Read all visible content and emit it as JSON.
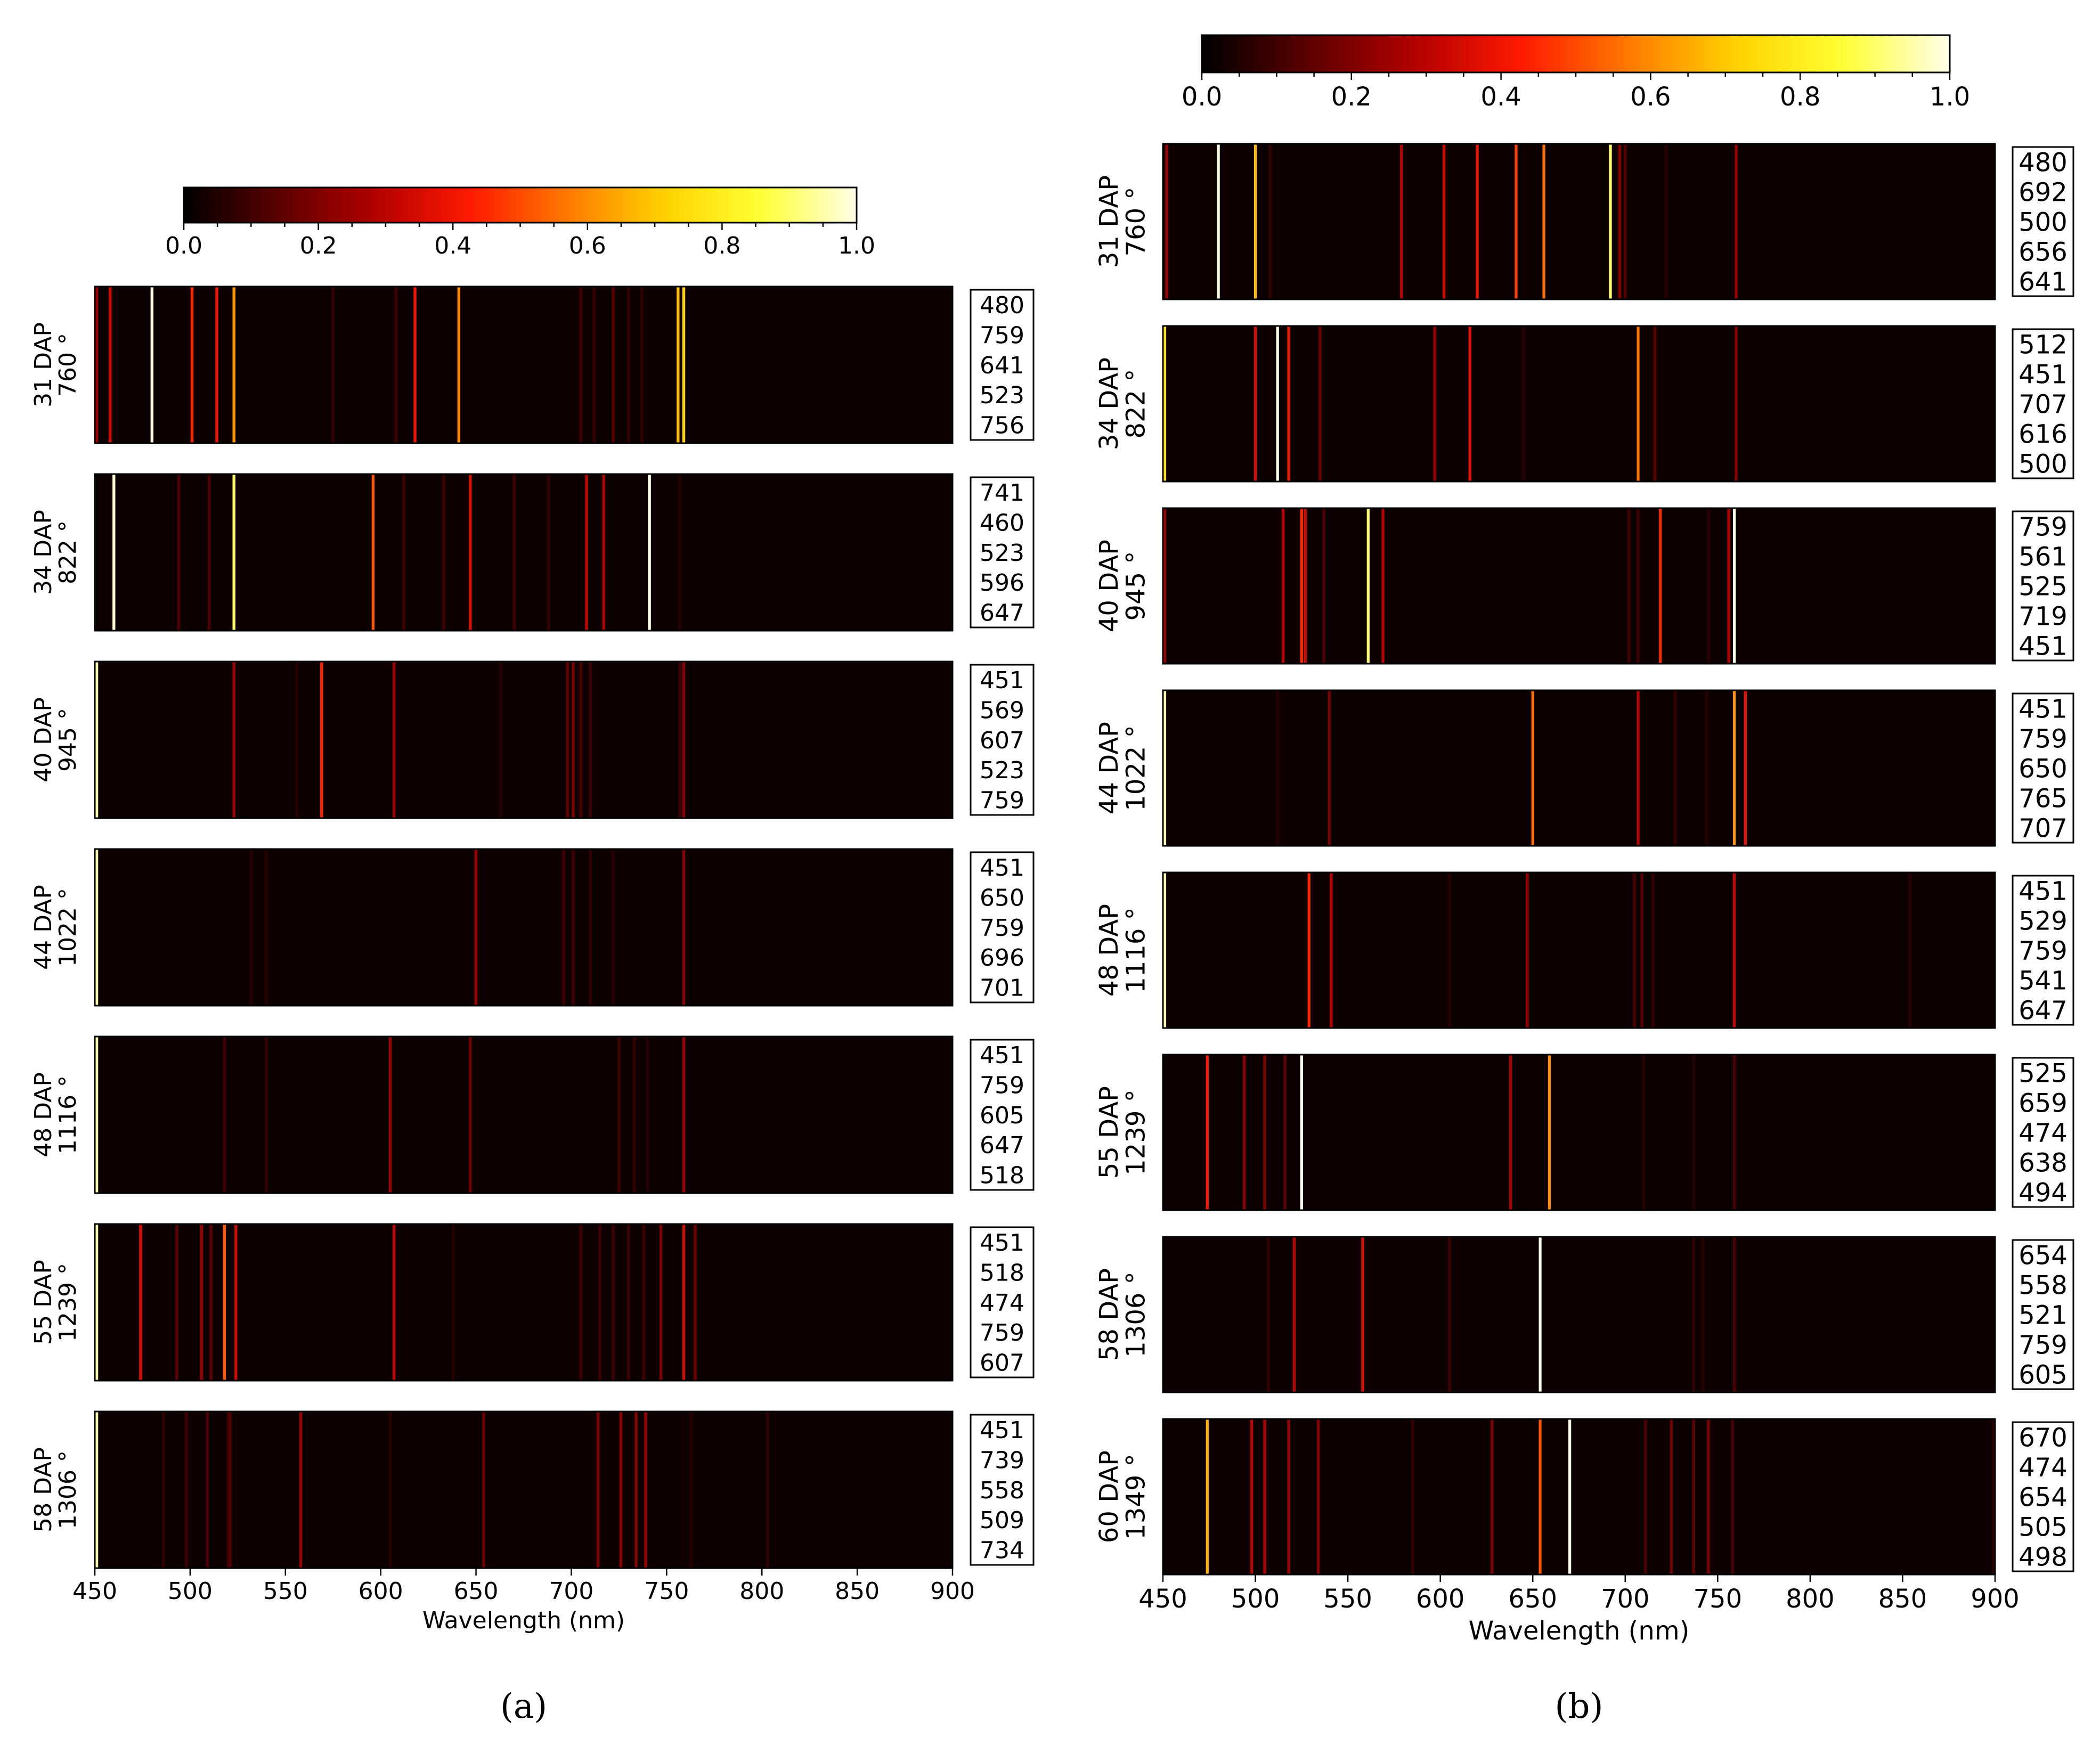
{
  "colors": {
    "colormap": [
      "#000000",
      "#5c0000",
      "#b30000",
      "#ff1a00",
      "#ff7a00",
      "#ffd200",
      "#ffff33",
      "#ffffe8"
    ],
    "frame": "#000000"
  },
  "chart_data": [
    {
      "id": "a",
      "type": "heatmap",
      "caption": "(a)",
      "xlabel": "Wavelength (nm)",
      "xlim": [
        450,
        900
      ],
      "xticks": [
        "450",
        "500",
        "550",
        "600",
        "650",
        "700",
        "750",
        "800",
        "850",
        "900"
      ],
      "colorbar": {
        "range": [
          0,
          1
        ],
        "ticks": [
          "0.0",
          "0.2",
          "0.4",
          "0.6",
          "0.8",
          "1.0"
        ]
      },
      "rows": [
        {
          "label1": "31 DAP",
          "label2": "760 °",
          "top": [
            "480",
            "759",
            "641",
            "523",
            "756"
          ],
          "bands": [
            [
              451,
              0.25
            ],
            [
              458,
              0.35
            ],
            [
              480,
              1.0
            ],
            [
              501,
              0.45
            ],
            [
              514,
              0.4
            ],
            [
              523,
              0.62
            ],
            [
              641,
              0.6
            ],
            [
              737,
              0.08
            ],
            [
              756,
              0.68
            ],
            [
              759,
              0.72
            ],
            [
              618,
              0.4
            ],
            [
              608,
              0.1
            ],
            [
              575,
              0.08
            ],
            [
              705,
              0.1
            ],
            [
              722,
              0.14
            ],
            [
              712,
              0.08
            ],
            [
              730,
              0.08
            ]
          ]
        },
        {
          "label1": "34 DAP",
          "label2": "822 °",
          "top": [
            "741",
            "460",
            "523",
            "596",
            "647"
          ],
          "bands": [
            [
              460,
              0.98
            ],
            [
              523,
              0.9
            ],
            [
              596,
              0.52
            ],
            [
              647,
              0.36
            ],
            [
              741,
              1.0
            ],
            [
              708,
              0.32
            ],
            [
              717,
              0.28
            ],
            [
              494,
              0.12
            ],
            [
              510,
              0.12
            ],
            [
              612,
              0.1
            ],
            [
              633,
              0.1
            ],
            [
              670,
              0.1
            ],
            [
              688,
              0.08
            ],
            [
              757,
              0.06
            ]
          ]
        },
        {
          "label1": "40 DAP",
          "label2": "945 °",
          "top": [
            "451",
            "569",
            "607",
            "523",
            "759"
          ],
          "bands": [
            [
              451,
              0.95
            ],
            [
              523,
              0.25
            ],
            [
              569,
              0.45
            ],
            [
              607,
              0.25
            ],
            [
              759,
              0.22
            ],
            [
              698,
              0.15
            ],
            [
              701,
              0.2
            ],
            [
              705,
              0.12
            ],
            [
              710,
              0.1
            ],
            [
              556,
              0.06
            ],
            [
              663,
              0.06
            ],
            [
              757,
              0.1
            ]
          ]
        },
        {
          "label1": "44 DAP",
          "label2": "1022 °",
          "top": [
            "451",
            "650",
            "759",
            "696",
            "701"
          ],
          "bands": [
            [
              451,
              0.95
            ],
            [
              650,
              0.25
            ],
            [
              759,
              0.22
            ],
            [
              696,
              0.1
            ],
            [
              701,
              0.1
            ],
            [
              710,
              0.08
            ],
            [
              532,
              0.06
            ],
            [
              540,
              0.06
            ],
            [
              722,
              0.06
            ]
          ]
        },
        {
          "label1": "48 DAP",
          "label2": "1116 °",
          "top": [
            "451",
            "759",
            "605",
            "647",
            "518"
          ],
          "bands": [
            [
              451,
              0.95
            ],
            [
              759,
              0.25
            ],
            [
              605,
              0.25
            ],
            [
              647,
              0.18
            ],
            [
              518,
              0.1
            ],
            [
              540,
              0.08
            ],
            [
              725,
              0.1
            ],
            [
              733,
              0.08
            ],
            [
              740,
              0.06
            ]
          ]
        },
        {
          "label1": "55 DAP",
          "label2": "1239 °",
          "top": [
            "451",
            "518",
            "474",
            "759",
            "607"
          ],
          "bands": [
            [
              451,
              0.95
            ],
            [
              474,
              0.36
            ],
            [
              518,
              0.52
            ],
            [
              524,
              0.34
            ],
            [
              759,
              0.35
            ],
            [
              607,
              0.3
            ],
            [
              506,
              0.25
            ],
            [
              493,
              0.15
            ],
            [
              511,
              0.15
            ],
            [
              747,
              0.2
            ],
            [
              765,
              0.18
            ],
            [
              705,
              0.1
            ],
            [
              715,
              0.1
            ],
            [
              722,
              0.1
            ],
            [
              730,
              0.1
            ],
            [
              738,
              0.1
            ],
            [
              638,
              0.06
            ]
          ]
        },
        {
          "label1": "58 DAP",
          "label2": "1306 °",
          "top": [
            "451",
            "739",
            "558",
            "509",
            "734"
          ],
          "bands": [
            [
              451,
              0.95
            ],
            [
              739,
              0.25
            ],
            [
              558,
              0.25
            ],
            [
              509,
              0.12
            ],
            [
              734,
              0.22
            ],
            [
              726,
              0.22
            ],
            [
              714,
              0.2
            ],
            [
              654,
              0.18
            ],
            [
              498,
              0.1
            ],
            [
              486,
              0.08
            ],
            [
              521,
              0.12
            ],
            [
              520,
              0.1
            ],
            [
              605,
              0.06
            ],
            [
              803,
              0.08
            ],
            [
              763,
              0.06
            ]
          ]
        }
      ]
    },
    {
      "id": "b",
      "type": "heatmap",
      "caption": "(b)",
      "xlabel": "Wavelength (nm)",
      "xlim": [
        450,
        900
      ],
      "xticks": [
        "450",
        "500",
        "550",
        "600",
        "650",
        "700",
        "750",
        "800",
        "850",
        "900"
      ],
      "colorbar": {
        "range": [
          0,
          1
        ],
        "ticks": [
          "0.0",
          "0.2",
          "0.4",
          "0.6",
          "0.8",
          "1.0"
        ]
      },
      "rows": [
        {
          "label1": "31 DAP",
          "label2": "760 °",
          "top": [
            "480",
            "692",
            "500",
            "656",
            "641"
          ],
          "bands": [
            [
              452,
              0.25
            ],
            [
              480,
              1.0
            ],
            [
              500,
              0.68
            ],
            [
              692,
              0.9
            ],
            [
              656,
              0.55
            ],
            [
              641,
              0.48
            ],
            [
              579,
              0.3
            ],
            [
              602,
              0.35
            ],
            [
              620,
              0.4
            ],
            [
              760,
              0.25
            ],
            [
              697,
              0.22
            ],
            [
              700,
              0.14
            ],
            [
              508,
              0.08
            ],
            [
              722,
              0.06
            ]
          ]
        },
        {
          "label1": "34 DAP",
          "label2": "822 °",
          "top": [
            "512",
            "451",
            "707",
            "616",
            "500"
          ],
          "bands": [
            [
              451,
              0.75
            ],
            [
              500,
              0.35
            ],
            [
              512,
              1.0
            ],
            [
              518,
              0.4
            ],
            [
              616,
              0.38
            ],
            [
              707,
              0.56
            ],
            [
              597,
              0.25
            ],
            [
              760,
              0.22
            ],
            [
              535,
              0.18
            ],
            [
              716,
              0.14
            ],
            [
              645,
              0.06
            ]
          ]
        },
        {
          "label1": "40 DAP",
          "label2": "945 °",
          "top": [
            "759",
            "561",
            "525",
            "719",
            "451"
          ],
          "bands": [
            [
              451,
              0.25
            ],
            [
              515,
              0.3
            ],
            [
              525,
              0.45
            ],
            [
              527,
              0.35
            ],
            [
              561,
              0.9
            ],
            [
              569,
              0.3
            ],
            [
              719,
              0.45
            ],
            [
              759,
              1.0
            ],
            [
              756,
              0.28
            ],
            [
              537,
              0.12
            ],
            [
              702,
              0.1
            ],
            [
              707,
              0.1
            ],
            [
              745,
              0.06
            ]
          ]
        },
        {
          "label1": "44 DAP",
          "label2": "1022 °",
          "top": [
            "451",
            "759",
            "650",
            "765",
            "707"
          ],
          "bands": [
            [
              451,
              0.95
            ],
            [
              540,
              0.2
            ],
            [
              650,
              0.55
            ],
            [
              707,
              0.3
            ],
            [
              759,
              0.62
            ],
            [
              765,
              0.38
            ],
            [
              727,
              0.08
            ],
            [
              512,
              0.06
            ],
            [
              744,
              0.06
            ]
          ]
        },
        {
          "label1": "48 DAP",
          "label2": "1116 °",
          "top": [
            "451",
            "529",
            "759",
            "541",
            "647"
          ],
          "bands": [
            [
              451,
              0.95
            ],
            [
              529,
              0.45
            ],
            [
              541,
              0.3
            ],
            [
              647,
              0.25
            ],
            [
              759,
              0.32
            ],
            [
              705,
              0.12
            ],
            [
              709,
              0.15
            ],
            [
              715,
              0.08
            ],
            [
              854,
              0.06
            ],
            [
              605,
              0.06
            ]
          ]
        },
        {
          "label1": "55 DAP",
          "label2": "1239 °",
          "top": [
            "525",
            "659",
            "474",
            "638",
            "494"
          ],
          "bands": [
            [
              474,
              0.42
            ],
            [
              494,
              0.22
            ],
            [
              505,
              0.2
            ],
            [
              525,
              1.0
            ],
            [
              638,
              0.28
            ],
            [
              659,
              0.6
            ],
            [
              516,
              0.15
            ],
            [
              759,
              0.12
            ],
            [
              710,
              0.06
            ],
            [
              737,
              0.06
            ]
          ]
        },
        {
          "label1": "58 DAP",
          "label2": "1306 °",
          "top": [
            "654",
            "558",
            "521",
            "759",
            "605"
          ],
          "bands": [
            [
              654,
              1.0
            ],
            [
              558,
              0.36
            ],
            [
              521,
              0.3
            ],
            [
              759,
              0.12
            ],
            [
              605,
              0.1
            ],
            [
              507,
              0.08
            ],
            [
              737,
              0.08
            ],
            [
              742,
              0.06
            ]
          ]
        },
        {
          "label1": "60 DAP",
          "label2": "1349 °",
          "top": [
            "670",
            "474",
            "654",
            "505",
            "498"
          ],
          "bands": [
            [
              474,
              0.66
            ],
            [
              498,
              0.3
            ],
            [
              505,
              0.28
            ],
            [
              518,
              0.25
            ],
            [
              534,
              0.22
            ],
            [
              628,
              0.2
            ],
            [
              654,
              0.52
            ],
            [
              670,
              1.0
            ],
            [
              711,
              0.12
            ],
            [
              725,
              0.18
            ],
            [
              737,
              0.15
            ],
            [
              745,
              0.2
            ],
            [
              758,
              0.12
            ],
            [
              585,
              0.08
            ],
            [
              899,
              0.06
            ]
          ]
        }
      ]
    }
  ]
}
